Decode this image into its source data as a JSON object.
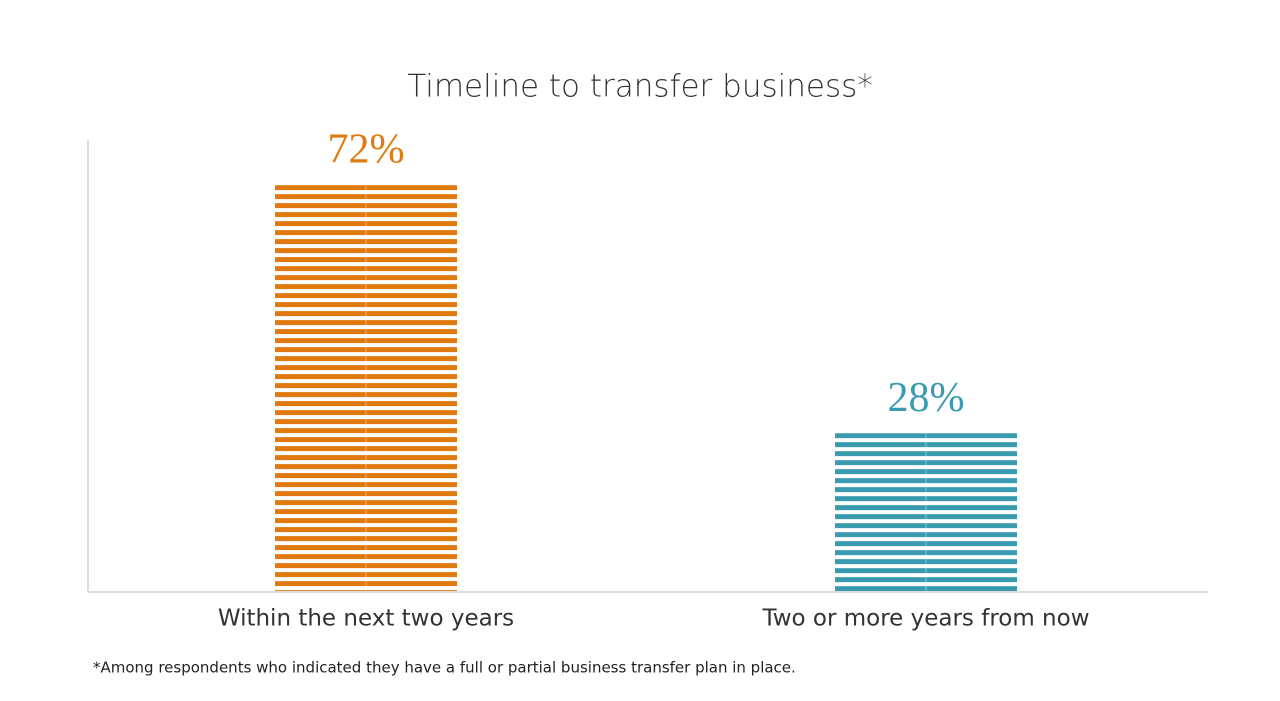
{
  "chart_data": {
    "type": "bar",
    "title": "Timeline to transfer business*",
    "categories": [
      "Within the next two years",
      "Two or more years from now"
    ],
    "values": [
      72,
      28
    ],
    "value_labels": [
      "72%",
      "28%"
    ],
    "colors": [
      "#e07a10",
      "#3a9bb0"
    ],
    "ylim": [
      0,
      80
    ],
    "footnote": "*Among respondents who indicated they have a full or partial business transfer plan in place."
  }
}
